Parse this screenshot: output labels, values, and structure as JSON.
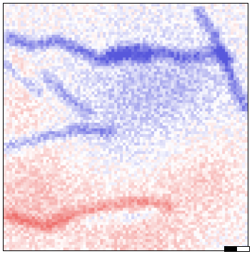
{
  "image": {
    "kind": "diverging-intensity-map",
    "colors": {
      "negative": "#3b3bd6",
      "neutral": "#ffffff",
      "positive": "#e8403c",
      "frame": "#000000"
    },
    "grid": {
      "cols": 86,
      "rows": 87
    },
    "features": [
      {
        "type": "blue-band",
        "path": [
          [
            0.02,
            0.14
          ],
          [
            0.12,
            0.17
          ],
          [
            0.22,
            0.15
          ],
          [
            0.32,
            0.19
          ],
          [
            0.4,
            0.23
          ],
          [
            0.5,
            0.21
          ],
          [
            0.58,
            0.22
          ]
        ],
        "strength": 0.7
      },
      {
        "type": "blue-band",
        "path": [
          [
            0.44,
            0.2
          ],
          [
            0.55,
            0.18
          ],
          [
            0.65,
            0.2
          ],
          [
            0.75,
            0.22
          ],
          [
            0.85,
            0.2
          ],
          [
            0.92,
            0.22
          ]
        ],
        "strength": 0.6
      },
      {
        "type": "blue-band",
        "path": [
          [
            0.8,
            0.04
          ],
          [
            0.86,
            0.12
          ],
          [
            0.9,
            0.22
          ],
          [
            0.95,
            0.34
          ],
          [
            0.99,
            0.42
          ]
        ],
        "strength": 0.65
      },
      {
        "type": "blue-band",
        "path": [
          [
            0.02,
            0.58
          ],
          [
            0.1,
            0.56
          ],
          [
            0.2,
            0.53
          ],
          [
            0.32,
            0.51
          ],
          [
            0.44,
            0.52
          ]
        ],
        "strength": 0.55
      },
      {
        "type": "blue-band",
        "path": [
          [
            0.18,
            0.3
          ],
          [
            0.26,
            0.38
          ],
          [
            0.34,
            0.44
          ]
        ],
        "strength": 0.45
      },
      {
        "type": "blue-band",
        "path": [
          [
            0.02,
            0.24
          ],
          [
            0.08,
            0.3
          ],
          [
            0.14,
            0.36
          ]
        ],
        "strength": 0.4
      },
      {
        "type": "blue-band",
        "path": [
          [
            0.36,
            0.88
          ],
          [
            0.44,
            0.86
          ],
          [
            0.52,
            0.87
          ],
          [
            0.62,
            0.84
          ]
        ],
        "strength": 0.35
      },
      {
        "type": "red-band",
        "path": [
          [
            0.02,
            0.86
          ],
          [
            0.1,
            0.88
          ],
          [
            0.18,
            0.9
          ],
          [
            0.26,
            0.86
          ]
        ],
        "strength": 0.6
      },
      {
        "type": "red-band",
        "path": [
          [
            0.3,
            0.85
          ],
          [
            0.42,
            0.82
          ],
          [
            0.55,
            0.8
          ],
          [
            0.68,
            0.82
          ]
        ],
        "strength": 0.45
      },
      {
        "type": "red-band",
        "path": [
          [
            0.04,
            0.22
          ],
          [
            0.08,
            0.28
          ]
        ],
        "strength": 0.35
      }
    ],
    "regions": [
      {
        "type": "blue-wash",
        "center": [
          0.55,
          0.38
        ],
        "radius": 0.24,
        "strength": 0.32
      },
      {
        "type": "blue-wash",
        "center": [
          0.78,
          0.3
        ],
        "radius": 0.16,
        "strength": 0.22
      },
      {
        "type": "red-wash",
        "center": [
          0.12,
          0.8
        ],
        "radius": 0.22,
        "strength": 0.38
      },
      {
        "type": "red-wash",
        "center": [
          0.82,
          0.72
        ],
        "radius": 0.18,
        "strength": 0.28
      },
      {
        "type": "red-wash",
        "center": [
          0.55,
          0.95
        ],
        "radius": 0.22,
        "strength": 0.34
      },
      {
        "type": "red-wash",
        "center": [
          0.08,
          0.42
        ],
        "radius": 0.1,
        "strength": 0.2
      }
    ],
    "noise": {
      "amplitude": 0.22,
      "seed": 17
    }
  },
  "scalebar": {
    "segments": 2
  }
}
